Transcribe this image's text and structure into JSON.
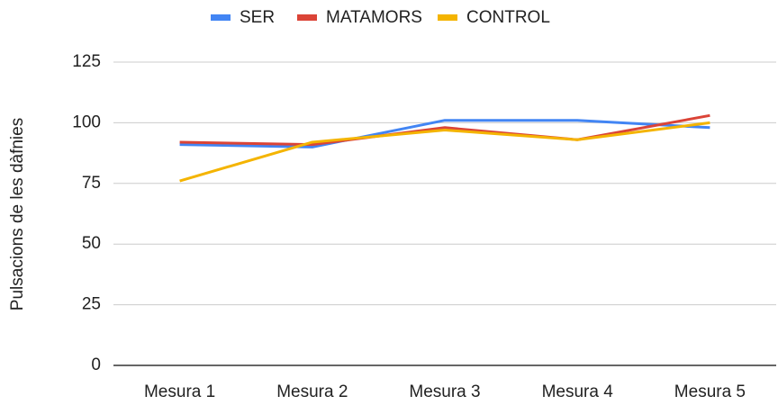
{
  "chart_data": {
    "type": "line",
    "y_label": "Pulsacions de les dàfnies",
    "categories": [
      "Mesura 1",
      "Mesura 2",
      "Mesura 3",
      "Mesura 4",
      "Mesura 5"
    ],
    "series": [
      {
        "name": "SER",
        "color": "#4285f4",
        "values": [
          91,
          90,
          101,
          101,
          98
        ]
      },
      {
        "name": "MATAMORS",
        "color": "#db4437",
        "values": [
          92,
          91,
          98,
          93,
          103
        ]
      },
      {
        "name": "CONTROL",
        "color": "#f4b400",
        "values": [
          76,
          92,
          97,
          93,
          100
        ]
      }
    ],
    "ylim": [
      0,
      125
    ],
    "yticks": [
      0,
      25,
      50,
      75,
      100,
      125
    ],
    "grid": true,
    "legend": "top"
  }
}
